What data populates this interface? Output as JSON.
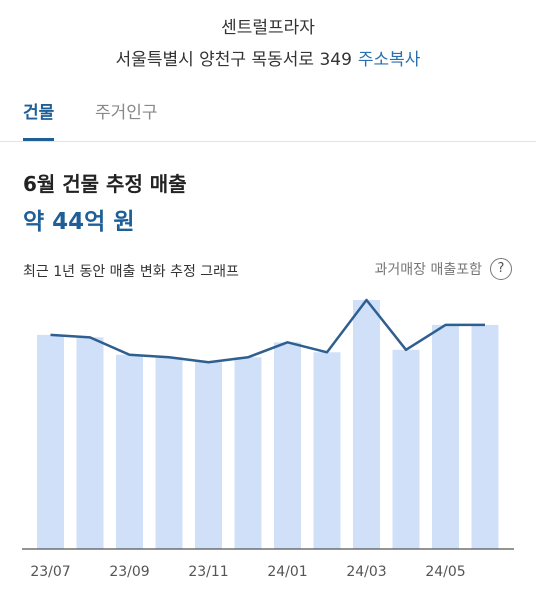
{
  "header": {
    "place_name": "센트럴프라자",
    "address": "서울특별시 양천구 목동서로 349",
    "copy_label": "주소복사"
  },
  "tabs": [
    {
      "label": "건물"
    },
    {
      "label": "주거인구"
    }
  ],
  "sales": {
    "title": "6월 건물 추정 매출",
    "amount": "약 44억 원"
  },
  "graph": {
    "caption": "최근 1년 동안 매출 변화 추정 그래프",
    "past_toggle_label": "과거매장 매출포함",
    "help_glyph": "?"
  },
  "colors": {
    "accent": "#1f5f98",
    "bar": "#cfe0f8",
    "line": "#2f5f8f"
  },
  "chart_data": {
    "type": "bar",
    "categories": [
      "23/07",
      "23/08",
      "23/09",
      "23/10",
      "23/11",
      "23/12",
      "24/01",
      "24/02",
      "24/03",
      "24/04",
      "24/05",
      "24/06"
    ],
    "tick_labels": [
      "23/07",
      "23/09",
      "23/11",
      "24/01",
      "24/03",
      "24/05"
    ],
    "tick_indices": [
      0,
      2,
      4,
      6,
      8,
      10
    ],
    "values": [
      86,
      85,
      78,
      77,
      75,
      77,
      83,
      79,
      100,
      80,
      90,
      90
    ],
    "line_values": [
      86,
      85,
      78,
      77,
      75,
      77,
      83,
      79,
      100,
      80,
      90,
      90
    ],
    "ylim": [
      0,
      100
    ],
    "grid": false
  }
}
